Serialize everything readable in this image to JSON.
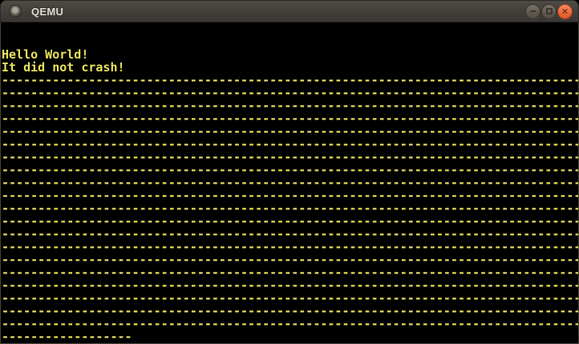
{
  "window": {
    "title": "QEMU",
    "icon": "qemu-window-icon",
    "controls": [
      {
        "id": "minimize",
        "icon": "minus-icon"
      },
      {
        "id": "maximize",
        "icon": "square-icon"
      },
      {
        "id": "close",
        "icon": "x-icon",
        "glyph": "✕"
      }
    ]
  },
  "colors": {
    "terminal_text": "#e9e35c",
    "terminal_background": "#000000",
    "titlebar_background": "#413e39",
    "titlebar_text": "#dfdbd2",
    "close_button": "#ea6637",
    "control_button": "#5d5950"
  },
  "screen": {
    "columns": 80,
    "rows": 25,
    "lines": [
      "",
      "",
      "Hello World!",
      "It did not crash!",
      "--------------------------------------------------------------------------------",
      "--------------------------------------------------------------------------------",
      "--------------------------------------------------------------------------------",
      "--------------------------------------------------------------------------------",
      "--------------------------------------------------------------------------------",
      "--------------------------------------------------------------------------------",
      "--------------------------------------------------------------------------------",
      "--------------------------------------------------------------------------------",
      "--------------------------------------------------------------------------------",
      "--------------------------------------------------------------------------------",
      "--------------------------------------------------------------------------------",
      "--------------------------------------------------------------------------------",
      "--------------------------------------------------------------------------------",
      "--------------------------------------------------------------------------------",
      "--------------------------------------------------------------------------------",
      "--------------------------------------------------------------------------------",
      "--------------------------------------------------------------------------------",
      "--------------------------------------------------------------------------------",
      "--------------------------------------------------------------------------------",
      "--------------------------------------------------------------------------------",
      "------------------"
    ]
  }
}
